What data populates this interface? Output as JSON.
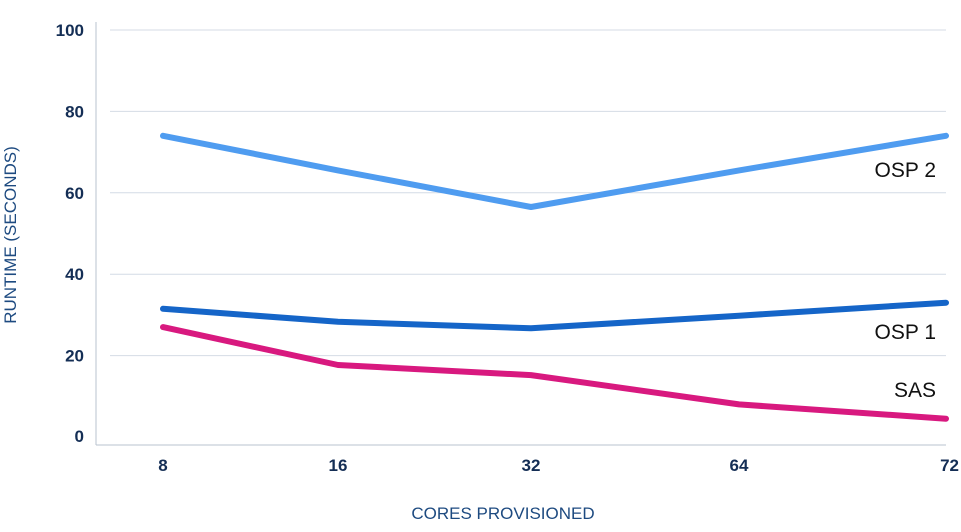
{
  "chart_data": {
    "type": "line",
    "xlabel": "CORES PROVISIONED",
    "ylabel": "RUNTIME (SECONDS)",
    "categories": [
      "8",
      "16",
      "32",
      "64",
      "72"
    ],
    "ylim": [
      0,
      100
    ],
    "yticks": [
      0,
      20,
      40,
      60,
      80,
      100
    ],
    "grid": true,
    "legend": "inline labels at right end of lines",
    "series": [
      {
        "name": "OSP 2",
        "color": "#4f9cf0",
        "values": [
          74,
          65.5,
          56.5,
          65.5,
          74
        ]
      },
      {
        "name": "OSP 1",
        "color": "#1565c8",
        "values": [
          31.5,
          28.3,
          26.7,
          29.8,
          33
        ]
      },
      {
        "name": "SAS",
        "color": "#d8197f",
        "values": [
          27,
          17.7,
          15.2,
          8,
          4.5
        ]
      }
    ]
  }
}
